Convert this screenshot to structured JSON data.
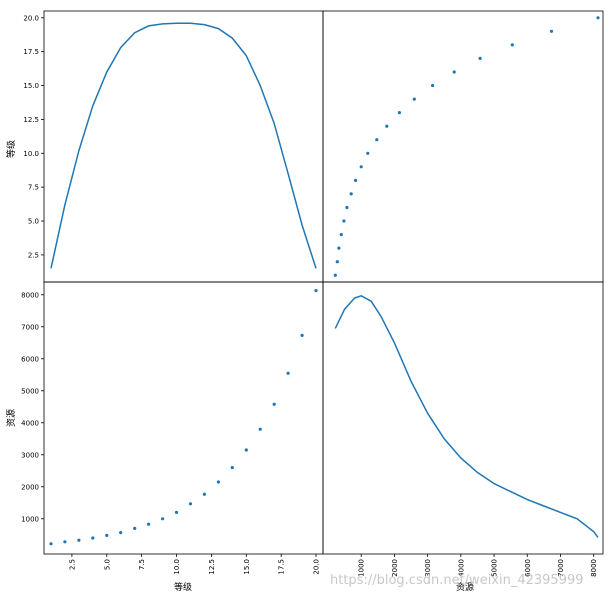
{
  "figure": {
    "watermark": "https://blog.csdn.net/weixin_42395999"
  },
  "chart_data": {
    "type": "scatter-matrix",
    "variables": [
      "等级",
      "资源"
    ],
    "line_color": "#1f77b4",
    "axes": {
      "等级": {
        "range": [
          0.5,
          20.5
        ],
        "ticks": [
          2.5,
          5.0,
          7.5,
          10.0,
          12.5,
          15.0,
          17.5,
          20.0
        ],
        "tick_labels": [
          "2.5",
          "5.0",
          "7.5",
          "10.0",
          "12.5",
          "15.0",
          "17.5",
          "20.0"
        ]
      },
      "资源": {
        "x_range": [
          -150,
          8280
        ],
        "y_range": [
          -100,
          8400
        ],
        "ticks": [
          1000,
          2000,
          3000,
          4000,
          5000,
          6000,
          7000,
          8000
        ],
        "tick_labels": [
          "1000",
          "2000",
          "3000",
          "4000",
          "5000",
          "6000",
          "7000",
          "8000"
        ]
      }
    },
    "points": {
      "等级": [
        1,
        2,
        3,
        4,
        5,
        6,
        7,
        8,
        9,
        10,
        11,
        12,
        13,
        14,
        15,
        16,
        17,
        18,
        19,
        20
      ],
      "资源": [
        220,
        280,
        330,
        400,
        480,
        570,
        700,
        830,
        1000,
        1200,
        1470,
        1770,
        2150,
        2600,
        3150,
        3800,
        4580,
        5550,
        6730,
        8130
      ]
    },
    "kde": {
      "等级": {
        "x": [
          1,
          2,
          3,
          4,
          5,
          6,
          7,
          8,
          9,
          10,
          11,
          12,
          13,
          14,
          15,
          16,
          17,
          18,
          19,
          20
        ],
        "y": [
          1.5,
          6.2,
          10.2,
          13.5,
          16.0,
          17.8,
          18.9,
          19.4,
          19.55,
          19.6,
          19.6,
          19.5,
          19.2,
          18.5,
          17.2,
          15.0,
          12.2,
          8.5,
          4.7,
          1.5
        ]
      },
      "资源": {
        "x": [
          220,
          500,
          800,
          1000,
          1300,
          1600,
          2000,
          2500,
          3000,
          3500,
          4000,
          4500,
          5000,
          5500,
          6000,
          6500,
          7000,
          7500,
          8000,
          8130
        ],
        "y": [
          6950,
          7550,
          7900,
          7970,
          7800,
          7320,
          6500,
          5300,
          4300,
          3500,
          2900,
          2450,
          2100,
          1850,
          1600,
          1400,
          1200,
          1000,
          600,
          420
        ]
      }
    }
  }
}
